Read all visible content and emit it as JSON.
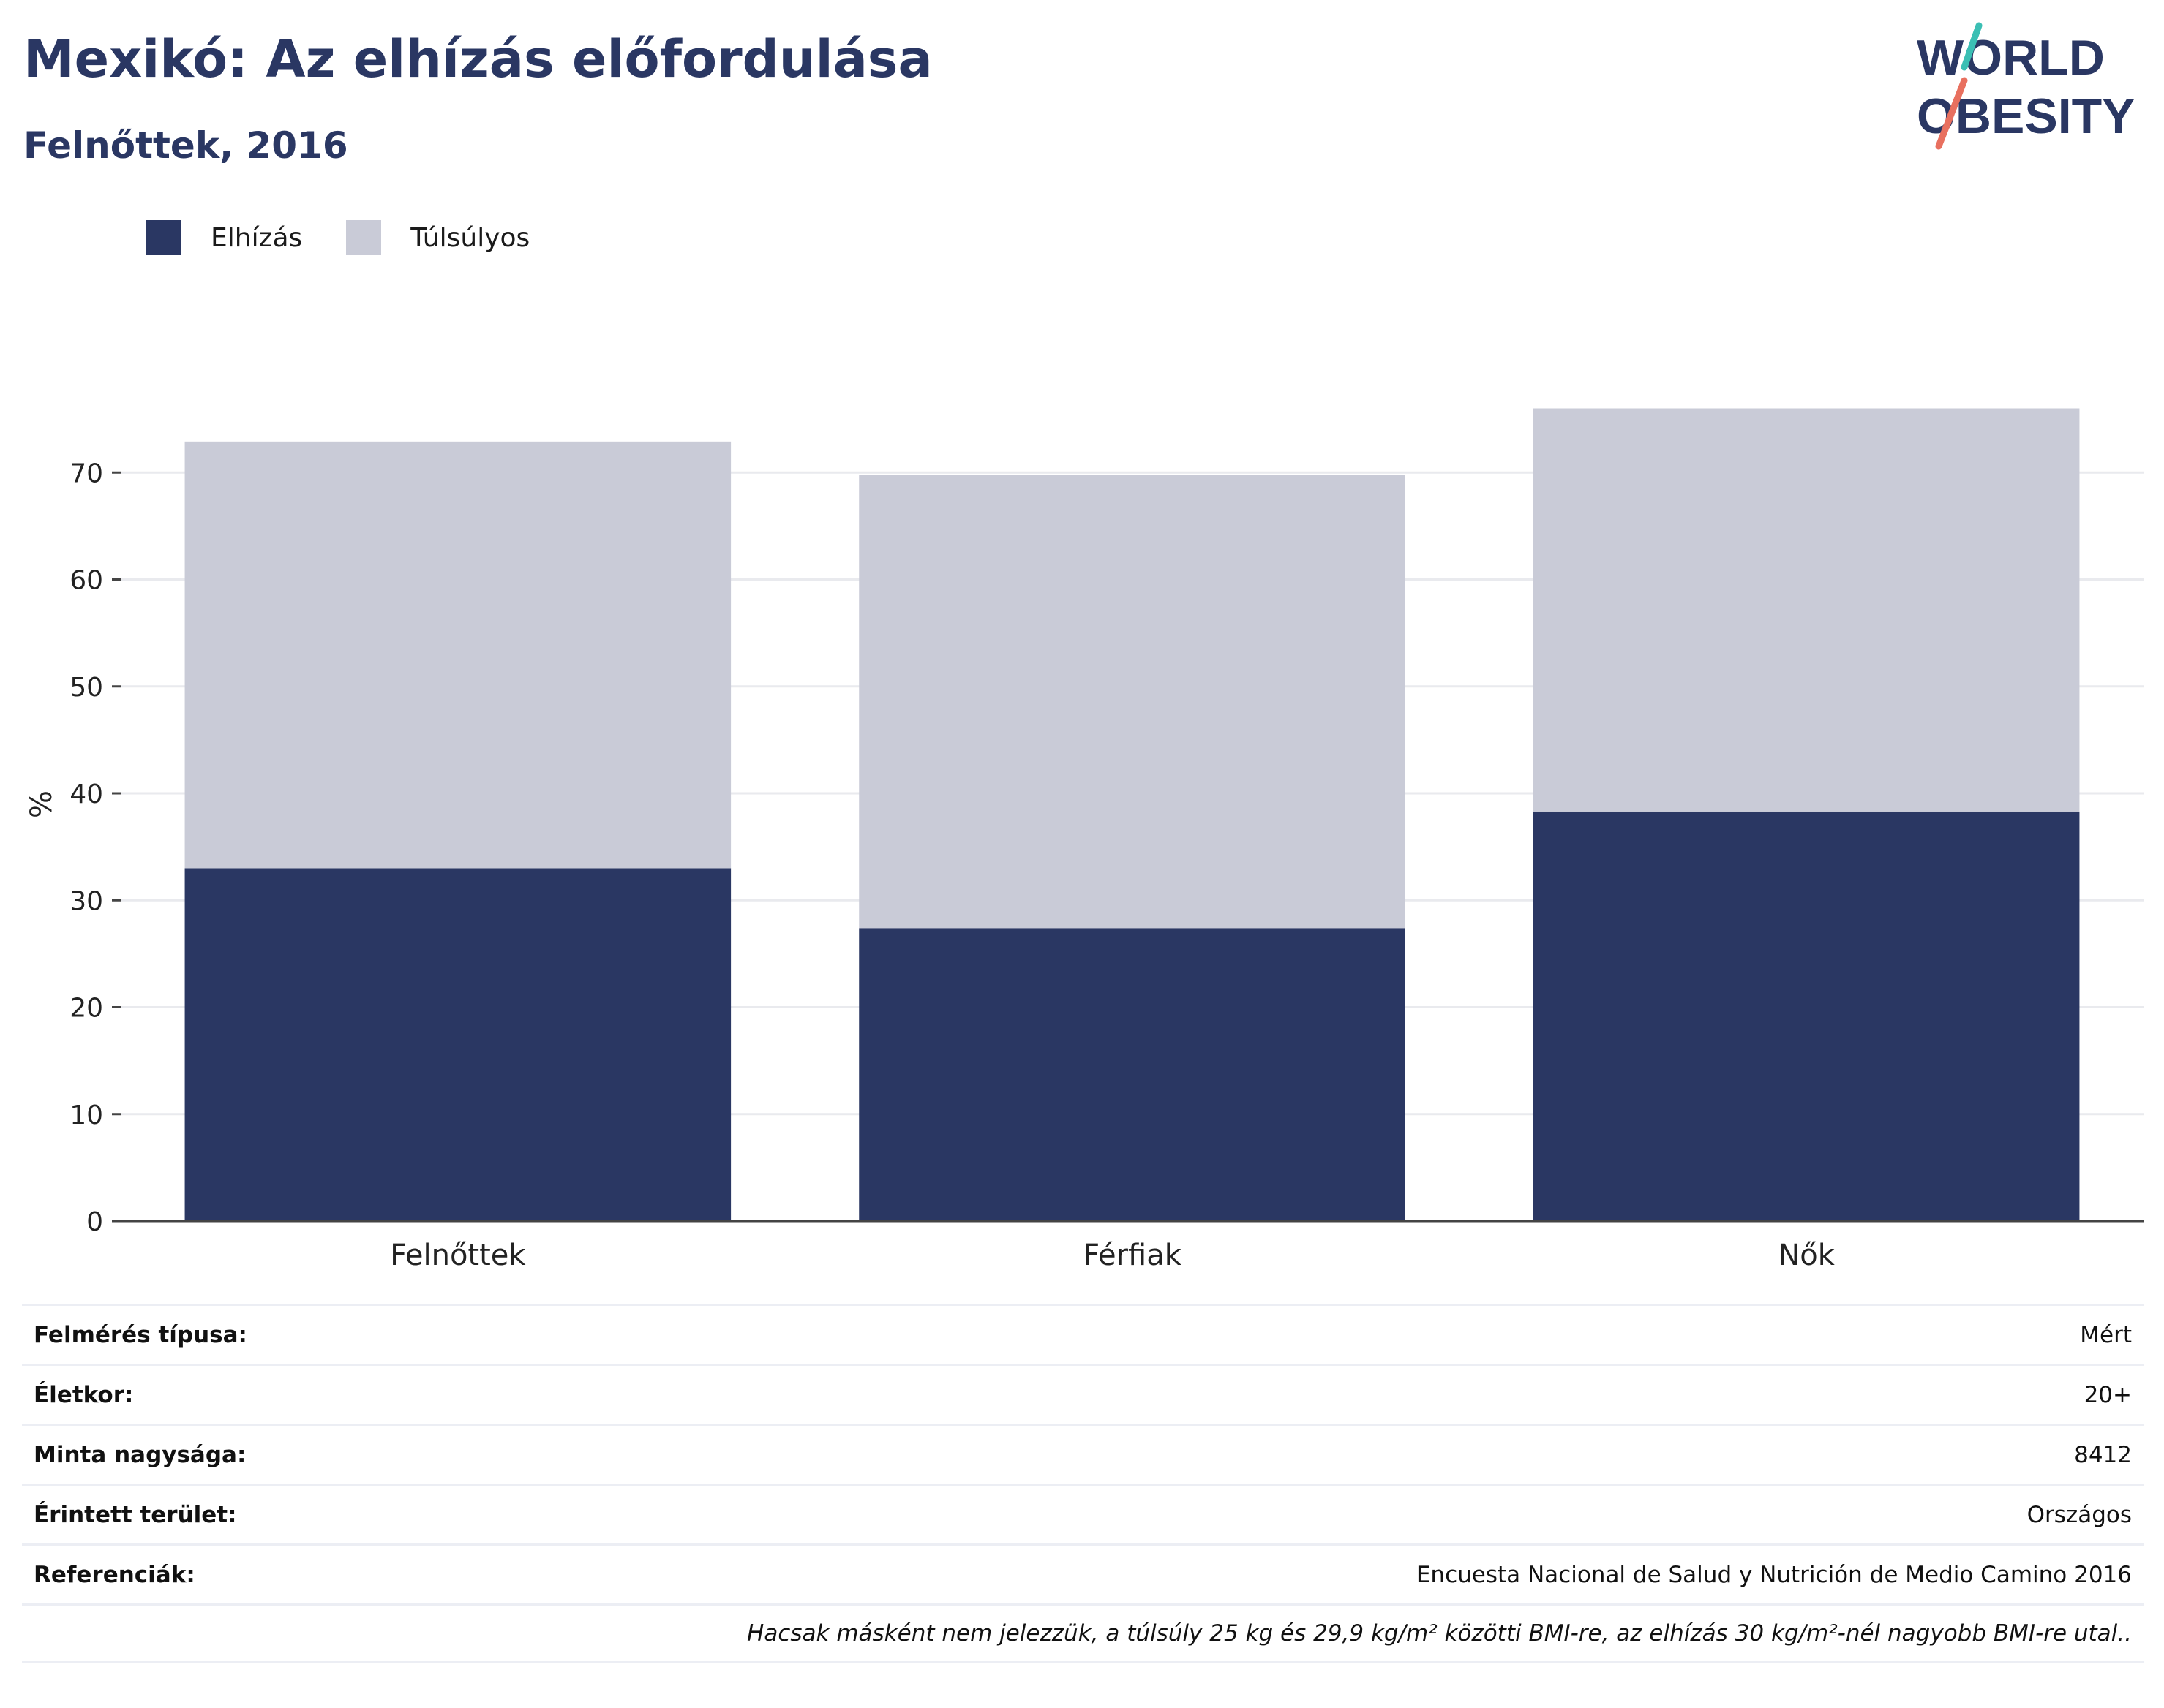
{
  "header": {
    "title": "Mexikó: Az elhízás előfordulása",
    "subtitle": "Felnőttek, 2016"
  },
  "logo": {
    "line1": "WORLD",
    "line2": "OBESITY",
    "colors": {
      "text": "#2a3763",
      "slash_top": "#3bbfb4",
      "slash_bottom": "#e8705f"
    }
  },
  "chart_data": {
    "type": "bar",
    "stacked": true,
    "categories": [
      "Felnőttek",
      "Férfiak",
      "Nők"
    ],
    "series": [
      {
        "name": "Elhízás",
        "values": [
          33.0,
          27.4,
          38.3
        ],
        "color": "#2a3763"
      },
      {
        "name": "Túlsúlyos",
        "values": [
          39.9,
          42.4,
          37.7
        ],
        "color": "#c9cbd7"
      }
    ],
    "title": "",
    "xlabel": "",
    "ylabel": "%",
    "ylim": [
      0,
      80
    ],
    "yticks": [
      0,
      10,
      20,
      30,
      40,
      50,
      60,
      70
    ],
    "grid": true,
    "legend_position": "top-left"
  },
  "info": {
    "rows": [
      {
        "label": "Felmérés típusa:",
        "value": "Mért"
      },
      {
        "label": "Életkor:",
        "value": "20+"
      },
      {
        "label": "Minta nagysága:",
        "value": "8412"
      },
      {
        "label": "Érintett terület:",
        "value": "Országos"
      },
      {
        "label": "Referenciák:",
        "value": "Encuesta Nacional de Salud y Nutrición de Medio Camino 2016"
      }
    ],
    "note": "Hacsak másként nem jelezzük, a túlsúly 25 kg és 29,9 kg/m² közötti BMI-re, az elhízás 30 kg/m²-nél nagyobb BMI-re utal.."
  }
}
